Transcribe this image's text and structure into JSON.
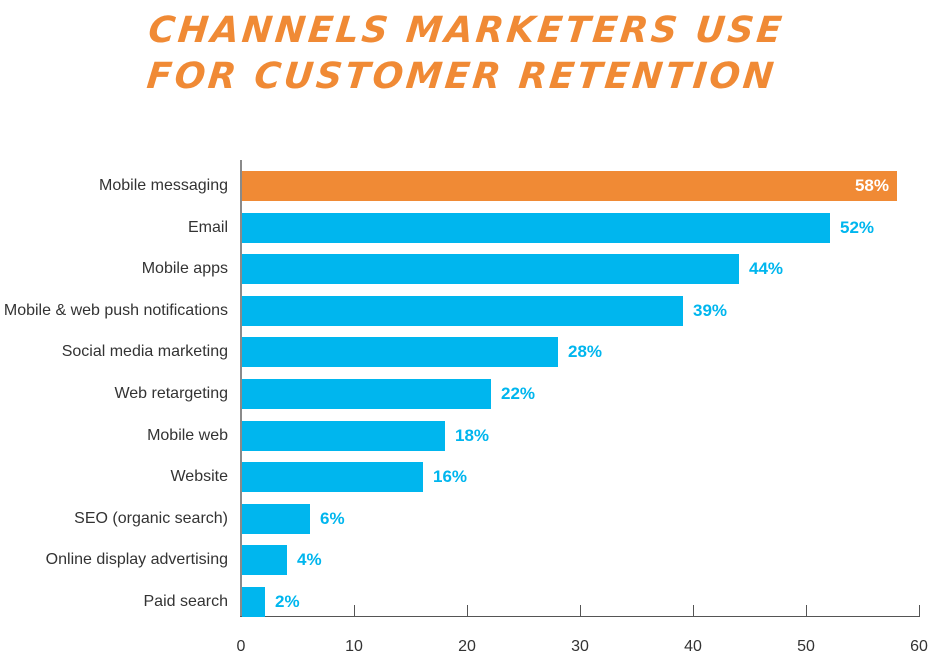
{
  "title": {
    "line1": "CHANNELS MARKETERS USE",
    "line2": "FOR CUSTOMER RETENTION"
  },
  "colors": {
    "highlight": "#f08a35",
    "bar": "#00b6ee",
    "label_text": "#333333",
    "title": "#f08a35"
  },
  "chart_data": {
    "type": "bar",
    "orientation": "horizontal",
    "title": "Channels Marketers Use for Customer Retention",
    "xlabel": "",
    "ylabel": "",
    "xlim": [
      0,
      60
    ],
    "xticks": [
      0,
      10,
      20,
      30,
      40,
      50,
      60
    ],
    "grid": false,
    "legend": null,
    "categories": [
      "Mobile messaging",
      "Email",
      "Mobile apps",
      "Mobile & web push notifications",
      "Social media marketing",
      "Web retargeting",
      "Mobile web",
      "Website",
      "SEO (organic search)",
      "Online display advertising",
      "Paid search"
    ],
    "values": [
      58,
      52,
      44,
      39,
      28,
      22,
      18,
      16,
      6,
      4,
      2
    ],
    "value_labels": [
      "58%",
      "52%",
      "44%",
      "39%",
      "28%",
      "22%",
      "18%",
      "16%",
      "6%",
      "4%",
      "2%"
    ],
    "highlighted_index": 0
  },
  "axis": {
    "tick_labels": [
      "0",
      "10",
      "20",
      "30",
      "40",
      "50",
      "60"
    ]
  }
}
